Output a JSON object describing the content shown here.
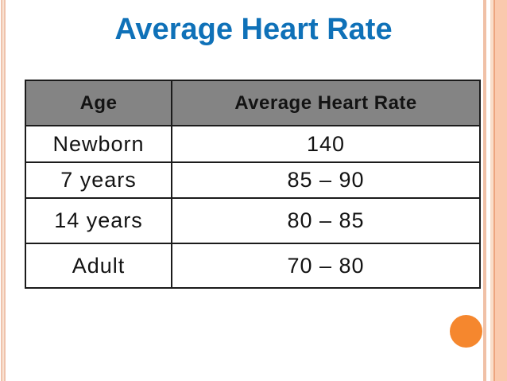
{
  "slide": {
    "title": "Average Heart Rate"
  },
  "table": {
    "columns": [
      "Age",
      "Average Heart Rate"
    ],
    "rows": [
      {
        "age": "Newborn",
        "rate": "140"
      },
      {
        "age": "7 years",
        "rate": "85 – 90"
      },
      {
        "age": "14 years",
        "rate": "80 – 85"
      },
      {
        "age": "Adult",
        "rate": "70 – 80"
      }
    ]
  },
  "chart_data": {
    "type": "table",
    "title": "Average Heart Rate",
    "columns": [
      "Age",
      "Average Heart Rate"
    ],
    "rows": [
      [
        "Newborn",
        "140"
      ],
      [
        "7 years",
        "85 – 90"
      ],
      [
        "14 years",
        "80 – 85"
      ],
      [
        "Adult",
        "70 – 80"
      ]
    ]
  },
  "colors": {
    "title_blue": "#0f71b8",
    "table_header_gray": "#848484",
    "border_black": "#1b1b1b",
    "circle_orange": "#f5872e",
    "stripe_salmon": "#fac9ad"
  }
}
